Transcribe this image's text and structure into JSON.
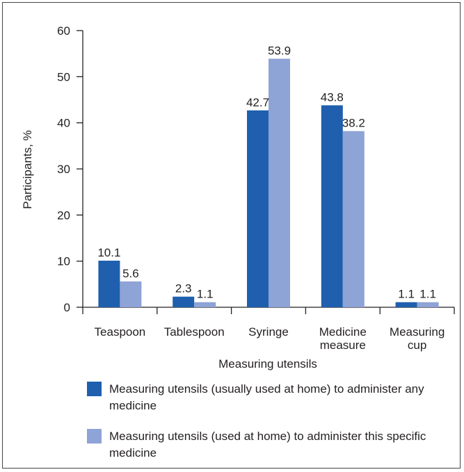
{
  "chart_data": {
    "type": "bar",
    "categories": [
      [
        "Teaspoon"
      ],
      [
        "Tablespoon"
      ],
      [
        "Syringe"
      ],
      [
        "Medicine",
        "measure"
      ],
      [
        "Measuring",
        "cup"
      ]
    ],
    "series": [
      {
        "name": "Measuring utensils (usually used at home) to administer any medicine",
        "values": [
          10.1,
          2.3,
          42.7,
          43.8,
          1.1
        ],
        "value_labels": [
          "10.1",
          "2.3",
          "42.7",
          "43.8",
          "1.1"
        ],
        "color": "#1f5fae"
      },
      {
        "name": "Measuring utensils (used at home) to administer this specific medicine",
        "values": [
          5.6,
          1.1,
          53.9,
          38.2,
          1.1
        ],
        "value_labels": [
          "5.6",
          "1.1",
          "53.9",
          "38.2",
          "1.1"
        ],
        "color": "#8ea3d6"
      }
    ],
    "xlabel": "Measuring utensils",
    "ylabel": "Participants, %",
    "ylim": [
      0,
      60
    ],
    "yticks": [
      "0",
      "10",
      "20",
      "30",
      "40",
      "50",
      "60"
    ],
    "grid": false,
    "legend_placement": "bottom"
  }
}
